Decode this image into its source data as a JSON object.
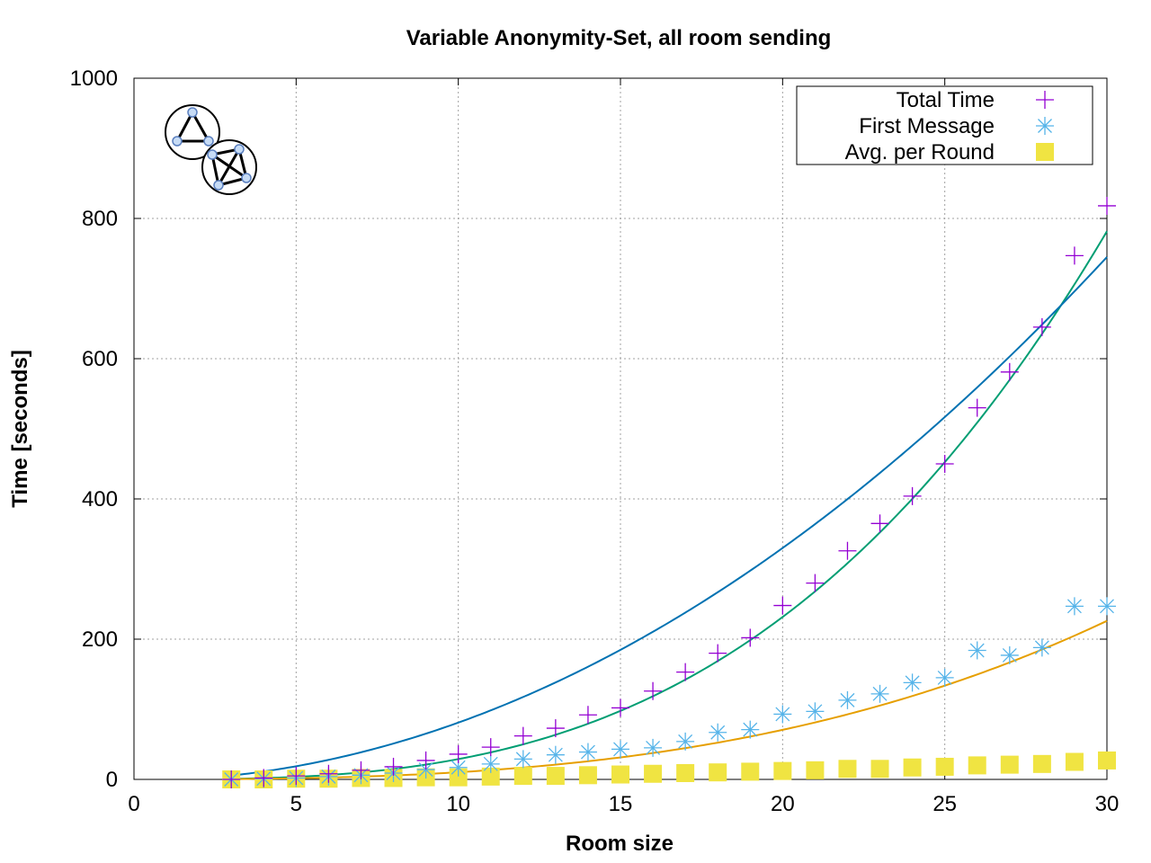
{
  "chart_data": {
    "type": "scatter",
    "title": "Variable Anonymity-Set, all room sending",
    "xlabel": "Room size",
    "ylabel": "Time [seconds]",
    "xlim": [
      0,
      30
    ],
    "ylim": [
      0,
      1000
    ],
    "xticks": [
      0,
      5,
      10,
      15,
      20,
      25,
      30
    ],
    "yticks": [
      0,
      200,
      400,
      600,
      800,
      1000
    ],
    "grid": true,
    "legend_position": "top-right",
    "x": [
      3,
      4,
      5,
      6,
      7,
      8,
      9,
      10,
      11,
      12,
      13,
      14,
      15,
      16,
      17,
      18,
      19,
      20,
      21,
      22,
      23,
      24,
      25,
      26,
      27,
      28,
      29,
      30
    ],
    "series": [
      {
        "name": "Total Time",
        "marker": "plus",
        "color": "#9400d3",
        "fit_color": "#009e73",
        "fit": [
          0.02895,
          0,
          0
        ],
        "values": [
          0,
          2,
          5,
          8,
          13,
          18,
          27,
          36,
          46,
          62,
          73,
          92,
          102,
          126,
          153,
          180,
          202,
          248,
          280,
          326,
          365,
          404,
          450,
          530,
          581,
          645,
          747,
          818
        ]
      },
      {
        "name": "First Message",
        "marker": "asterisk",
        "color": "#56b4e9",
        "fit_color": "#e69f00",
        "fit": [
          0.00745,
          0.0277,
          0
        ],
        "values": [
          0,
          1,
          2,
          4,
          6,
          9,
          14,
          17,
          22,
          29,
          35,
          39,
          43,
          45,
          54,
          67,
          71,
          93,
          97,
          113,
          122,
          138,
          145,
          184,
          177,
          188,
          247,
          247
        ]
      },
      {
        "name": "Avg. per Round",
        "marker": "square",
        "color": "#f0e442",
        "fit_color": "#0072b2",
        "fit": [
          0,
          0.83,
          -2.0
        ],
        "values": [
          0,
          0,
          1,
          1,
          2,
          2,
          3,
          3,
          4,
          5,
          5,
          6,
          7,
          8,
          9,
          10,
          11,
          12,
          13,
          15,
          15,
          17,
          18,
          20,
          21,
          22,
          25,
          27
        ]
      }
    ]
  },
  "logo": {
    "name": "anonymity-rooms-logo"
  }
}
